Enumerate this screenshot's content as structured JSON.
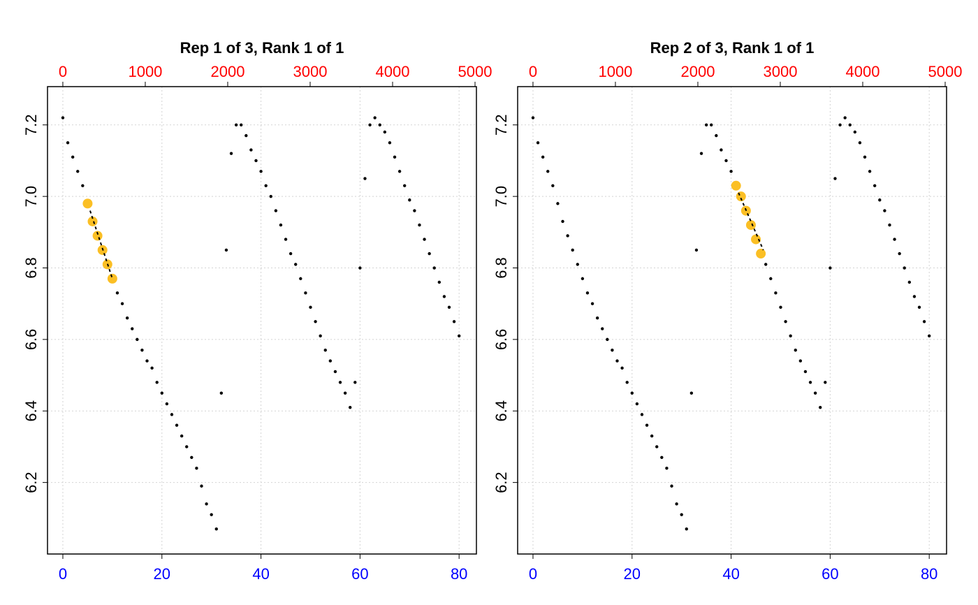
{
  "chart_data": [
    {
      "type": "scatter",
      "title": "Rep 1 of 3, Rank 1 of 1",
      "xlim": [
        -3.1,
        83.5
      ],
      "xticks": [
        0,
        20,
        40,
        60,
        80
      ],
      "xtick_color": "#0000ff",
      "x2lim": [
        -186,
        5017
      ],
      "x2ticks": [
        0,
        1000,
        2000,
        3000,
        4000,
        5000
      ],
      "x2tick_color": "#ff0000",
      "ylim": [
        6.0,
        7.307
      ],
      "yticks": [
        6.2,
        6.4,
        6.6,
        6.8,
        {
          "value": 7.0,
          "label": "7.0"
        },
        7.2
      ],
      "grid": true,
      "series": [
        {
          "color": "#000000",
          "x": [
            0,
            1,
            2,
            3,
            4,
            5,
            6,
            7,
            8,
            9,
            10,
            11,
            12,
            13,
            14,
            15,
            16,
            17,
            18,
            19,
            20,
            21,
            22,
            23,
            24,
            25,
            26,
            27,
            28,
            29,
            30,
            31,
            32,
            33,
            34,
            35,
            36,
            37,
            38,
            39,
            40,
            41,
            42,
            43,
            44,
            45,
            46,
            47,
            48,
            49,
            50,
            51,
            52,
            53,
            54,
            55,
            56,
            57,
            58,
            59,
            60,
            61,
            62,
            63,
            64,
            65,
            66,
            67,
            68,
            69,
            70,
            71,
            72,
            73,
            74,
            75,
            76,
            77,
            78,
            79,
            80
          ],
          "values": [
            7.22,
            7.15,
            7.11,
            7.07,
            7.03,
            6.98,
            6.93,
            6.89,
            6.85,
            6.81,
            6.77,
            6.73,
            6.7,
            6.66,
            6.63,
            6.6,
            6.57,
            6.54,
            6.52,
            6.48,
            6.45,
            6.42,
            6.39,
            6.36,
            6.33,
            6.3,
            6.27,
            6.24,
            6.19,
            6.14,
            6.11,
            6.07,
            6.45,
            6.85,
            7.12,
            7.2,
            7.2,
            7.17,
            7.13,
            7.1,
            7.07,
            7.03,
            7.0,
            6.96,
            6.92,
            6.88,
            6.84,
            6.81,
            6.77,
            6.73,
            6.69,
            6.65,
            6.61,
            6.57,
            6.54,
            6.51,
            6.48,
            6.45,
            6.41,
            6.48,
            6.8,
            7.05,
            7.2,
            7.22,
            7.2,
            7.18,
            7.15,
            7.11,
            7.07,
            7.03,
            6.99,
            6.96,
            6.92,
            6.88,
            6.84,
            6.8,
            6.76,
            6.72,
            6.69,
            6.65,
            6.61
          ]
        },
        {
          "color": "#fbbf24",
          "x": [
            5,
            6,
            7,
            8,
            9,
            10
          ],
          "values": [
            6.98,
            6.93,
            6.89,
            6.85,
            6.81,
            6.77
          ]
        },
        {
          "color": "#000000",
          "style": "dashed",
          "x": [
            5.5,
            10
          ],
          "values": [
            6.96,
            6.77
          ]
        }
      ]
    },
    {
      "type": "scatter",
      "title": "Rep 2 of 3, Rank 1 of 1",
      "xlim": [
        -3.1,
        83.5
      ],
      "xticks": [
        0,
        20,
        40,
        60,
        80
      ],
      "xtick_color": "#0000ff",
      "x2lim": [
        -186,
        5017
      ],
      "x2ticks": [
        0,
        1000,
        2000,
        3000,
        4000,
        5000
      ],
      "x2tick_color": "#ff0000",
      "ylim": [
        6.0,
        7.307
      ],
      "yticks": [
        6.2,
        6.4,
        6.6,
        6.8,
        {
          "value": 7.0,
          "label": "7.0"
        },
        7.2
      ],
      "grid": true,
      "series": [
        {
          "color": "#000000",
          "x": [
            0,
            1,
            2,
            3,
            4,
            5,
            6,
            7,
            8,
            9,
            10,
            11,
            12,
            13,
            14,
            15,
            16,
            17,
            18,
            19,
            20,
            21,
            22,
            23,
            24,
            25,
            26,
            27,
            28,
            29,
            30,
            31,
            32,
            33,
            34,
            35,
            36,
            37,
            38,
            39,
            40,
            41,
            42,
            43,
            44,
            45,
            46,
            47,
            48,
            49,
            50,
            51,
            52,
            53,
            54,
            55,
            56,
            57,
            58,
            59,
            60,
            61,
            62,
            63,
            64,
            65,
            66,
            67,
            68,
            69,
            70,
            71,
            72,
            73,
            74,
            75,
            76,
            77,
            78,
            79,
            80
          ],
          "values": [
            7.22,
            7.15,
            7.11,
            7.07,
            7.03,
            6.98,
            6.93,
            6.89,
            6.85,
            6.81,
            6.77,
            6.73,
            6.7,
            6.66,
            6.63,
            6.6,
            6.57,
            6.54,
            6.52,
            6.48,
            6.45,
            6.42,
            6.39,
            6.36,
            6.33,
            6.3,
            6.27,
            6.24,
            6.19,
            6.14,
            6.11,
            6.07,
            6.45,
            6.85,
            7.12,
            7.2,
            7.2,
            7.17,
            7.13,
            7.1,
            7.07,
            7.03,
            7.0,
            6.96,
            6.92,
            6.88,
            6.84,
            6.81,
            6.77,
            6.73,
            6.69,
            6.65,
            6.61,
            6.57,
            6.54,
            6.51,
            6.48,
            6.45,
            6.41,
            6.48,
            6.8,
            7.05,
            7.2,
            7.22,
            7.2,
            7.18,
            7.15,
            7.11,
            7.07,
            7.03,
            6.99,
            6.96,
            6.92,
            6.88,
            6.84,
            6.8,
            6.76,
            6.72,
            6.69,
            6.65,
            6.61
          ]
        },
        {
          "color": "#fbbf24",
          "x": [
            41,
            42,
            43,
            44,
            45,
            46
          ],
          "values": [
            7.03,
            7.0,
            6.96,
            6.92,
            6.88,
            6.84
          ]
        },
        {
          "color": "#000000",
          "style": "dashed",
          "x": [
            41.5,
            46.5
          ],
          "values": [
            7.01,
            6.85
          ]
        }
      ]
    }
  ]
}
